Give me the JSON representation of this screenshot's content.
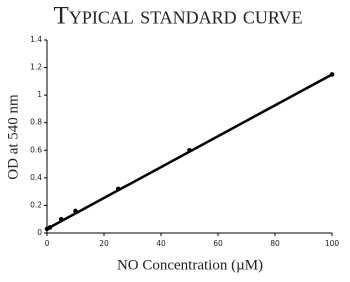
{
  "chart_data": {
    "type": "scatter",
    "title": "Typical standard curve",
    "xlabel": "NO Concentration (µM)",
    "ylabel": "OD at 540 nm",
    "x": [
      0,
      1,
      5,
      10,
      25,
      50,
      100
    ],
    "values": [
      0.03,
      0.04,
      0.1,
      0.16,
      0.32,
      0.6,
      1.15
    ],
    "color": "#000000",
    "fit": {
      "x": [
        0,
        100
      ],
      "values": [
        0.03,
        1.15
      ]
    },
    "xlim": [
      0,
      100
    ],
    "xticks": [
      0,
      20,
      40,
      60,
      80,
      100
    ],
    "ylim": [
      0,
      1.4
    ],
    "yticks": [
      0,
      0.2,
      0.4,
      0.6,
      0.8,
      1,
      1.2,
      1.4
    ],
    "grid": false
  }
}
